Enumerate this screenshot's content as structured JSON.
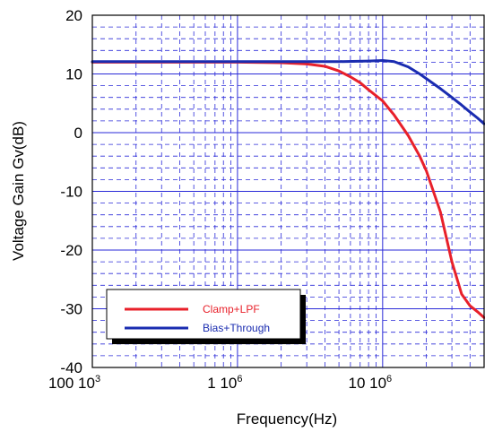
{
  "chart_data": {
    "type": "line",
    "title": "",
    "xlabel": "Frequency(Hz)",
    "ylabel": "Voltage Gain  Gv(dB)",
    "x_scale": "log",
    "xlim": [
      100000,
      50000000
    ],
    "ylim": [
      -40,
      20
    ],
    "grid": true,
    "grid_color": "#2a2ad8",
    "x_ticks": [
      {
        "value": 100000,
        "pre": "100 10",
        "exp": "3"
      },
      {
        "value": 1000000,
        "pre": "1 10",
        "exp": "6"
      },
      {
        "value": 10000000,
        "pre": "10 10",
        "exp": "6"
      }
    ],
    "y_ticks": [
      {
        "value": 20,
        "label": "20"
      },
      {
        "value": 10,
        "label": "10"
      },
      {
        "value": 0,
        "label": "0"
      },
      {
        "value": -10,
        "label": "-10"
      },
      {
        "value": -20,
        "label": "-20"
      },
      {
        "value": -30,
        "label": "-30"
      },
      {
        "value": -40,
        "label": "-40"
      }
    ],
    "legend_position": "bottom-left",
    "series": [
      {
        "name": "Clamp+LPF",
        "color": "#e8202a",
        "x": [
          100000,
          500000,
          1000000,
          2000000,
          3000000,
          4000000,
          5000000,
          6000000,
          7000000,
          8000000,
          10000000,
          12000000,
          15000000,
          18000000,
          20000000,
          25000000,
          30000000,
          35000000,
          40000000,
          45000000,
          50000000
        ],
        "y": [
          12.0,
          12.0,
          12.0,
          11.9,
          11.7,
          11.3,
          10.5,
          9.5,
          8.5,
          7.3,
          5.4,
          3.0,
          -0.5,
          -4.0,
          -6.5,
          -13.5,
          -22.0,
          -27.5,
          -29.5,
          -30.5,
          -31.5
        ]
      },
      {
        "name": "Bias+Through",
        "color": "#1a2cb0",
        "x": [
          100000,
          1000000,
          5000000,
          8000000,
          10000000,
          12000000,
          15000000,
          18000000,
          20000000,
          25000000,
          30000000,
          35000000,
          40000000,
          45000000,
          50000000
        ],
        "y": [
          12.1,
          12.1,
          12.1,
          12.2,
          12.3,
          12.1,
          11.2,
          10.0,
          9.2,
          7.5,
          6.0,
          4.7,
          3.5,
          2.5,
          1.5
        ]
      }
    ]
  }
}
